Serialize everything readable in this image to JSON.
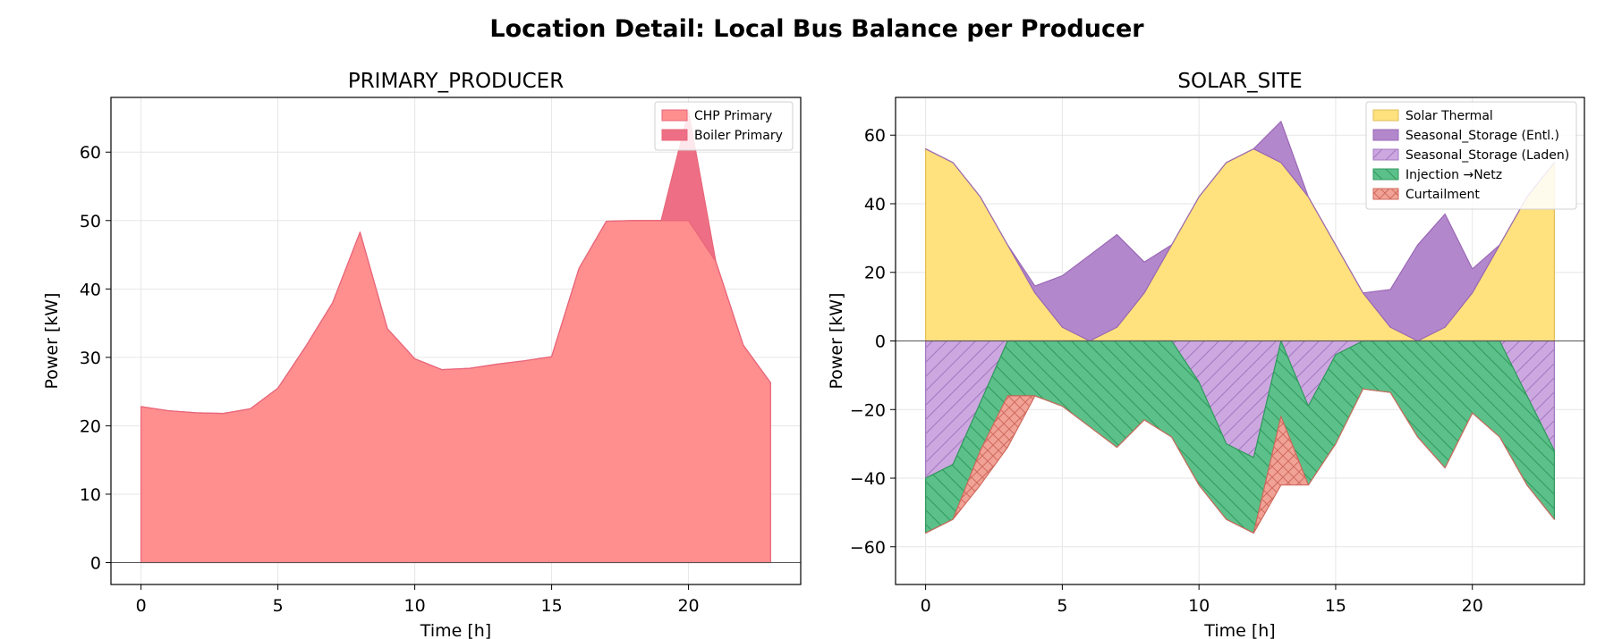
{
  "figure_title": "Location Detail: Local Bus Balance per Producer",
  "colors": {
    "chp": "#ff8f8f",
    "chp_edge": "#e8667a",
    "boiler": "#ee6f85",
    "solar": "#ffe27d",
    "solar_edge": "#e0bd5a",
    "discharge": "#b387cc",
    "discharge_edge": "#9a68b5",
    "charge": "#cda8e0",
    "charge_hatch": "#a277c0",
    "injection": "#5cc08a",
    "injection_edge": "#2f9a5c",
    "curtail": "#f1a296",
    "curtail_hatch": "#d06a5e",
    "grid": "#e6e6e6"
  },
  "chart_data": [
    {
      "type": "area",
      "title": "PRIMARY_PRODUCER",
      "xlabel": "Time [h]",
      "ylabel": "Power [kW]",
      "xlim": [
        -1.1,
        24.1
      ],
      "ylim": [
        -3.2,
        68
      ],
      "xticks": [
        0,
        5,
        10,
        15,
        20
      ],
      "yticks": [
        0,
        10,
        20,
        30,
        40,
        50,
        60
      ],
      "grid": true,
      "legend_position": "top-right",
      "x": [
        0,
        1,
        2,
        3,
        4,
        5,
        6,
        7,
        8,
        9,
        10,
        11,
        12,
        13,
        14,
        15,
        16,
        17,
        18,
        19,
        20,
        21,
        22,
        23
      ],
      "series": [
        {
          "name": "CHP Primary",
          "style": "solid",
          "values": [
            22.8,
            22.2,
            21.9,
            21.8,
            22.5,
            25.5,
            31.5,
            38.0,
            48.3,
            34.2,
            29.8,
            28.2,
            28.4,
            29.0,
            29.5,
            30.1,
            43.0,
            49.9,
            50.0,
            50.0,
            50.0,
            44.0,
            31.8,
            26.3
          ]
        },
        {
          "name": "Boiler Primary",
          "style": "solid",
          "values": [
            0,
            0,
            0,
            0,
            0,
            0,
            0,
            0,
            0,
            0,
            0,
            0,
            0,
            0,
            0,
            0,
            0,
            0,
            0,
            0,
            16.0,
            0,
            0,
            0
          ]
        }
      ]
    },
    {
      "type": "area",
      "title": "SOLAR_SITE",
      "xlabel": "Time [h]",
      "ylabel": "Power [kW]",
      "xlim": [
        -1.1,
        24.1
      ],
      "ylim": [
        -71,
        71
      ],
      "xticks": [
        0,
        5,
        10,
        15,
        20
      ],
      "yticks": [
        -60,
        -40,
        -20,
        0,
        20,
        40,
        60
      ],
      "grid": true,
      "legend_position": "top-right",
      "x": [
        0,
        1,
        2,
        3,
        4,
        5,
        6,
        7,
        8,
        9,
        10,
        11,
        12,
        13,
        14,
        15,
        16,
        17,
        18,
        19,
        20,
        21,
        22,
        23
      ],
      "series": [
        {
          "name": "Solar Thermal",
          "style": "solid",
          "stack": "positive",
          "values": [
            56,
            52,
            42,
            28,
            14,
            4,
            0,
            4,
            14,
            28,
            42,
            52,
            56,
            52,
            42,
            28,
            14,
            4,
            0,
            4,
            14,
            28,
            42,
            52
          ]
        },
        {
          "name": "Seasonal_Storage (Entl.)",
          "style": "solid",
          "stack": "positive",
          "values": [
            0,
            0,
            0,
            0,
            2,
            15,
            25,
            27,
            9,
            0,
            0,
            0,
            0,
            12,
            0,
            0,
            0,
            11,
            28,
            33,
            7,
            0,
            0,
            0
          ]
        },
        {
          "name": "Seasonal_Storage (Laden)",
          "style": "hatch",
          "stack": "negative",
          "values": [
            -40,
            -36,
            -18,
            0,
            0,
            0,
            0,
            0,
            0,
            0,
            -12,
            -30,
            -34,
            0,
            -19,
            -4,
            0,
            0,
            0,
            0,
            0,
            0,
            -16,
            -32
          ]
        },
        {
          "name": "Injection →Netz",
          "style": "hatch",
          "stack": "negative",
          "values": [
            -16,
            -16,
            -14,
            -16,
            -16,
            -19,
            -25,
            -31,
            -23,
            -28,
            -30,
            -22,
            -22,
            -22,
            -23,
            -26,
            -14,
            -15,
            -28,
            -37,
            -21,
            -28,
            -26,
            -20
          ]
        },
        {
          "name": "Curtailment",
          "style": "hatch",
          "stack": "negative",
          "values": [
            0,
            0,
            -10,
            -15,
            0,
            0,
            0,
            0,
            0,
            0,
            0,
            0,
            0,
            -20,
            0,
            0,
            0,
            0,
            0,
            0,
            0,
            0,
            0,
            0
          ]
        }
      ]
    }
  ]
}
